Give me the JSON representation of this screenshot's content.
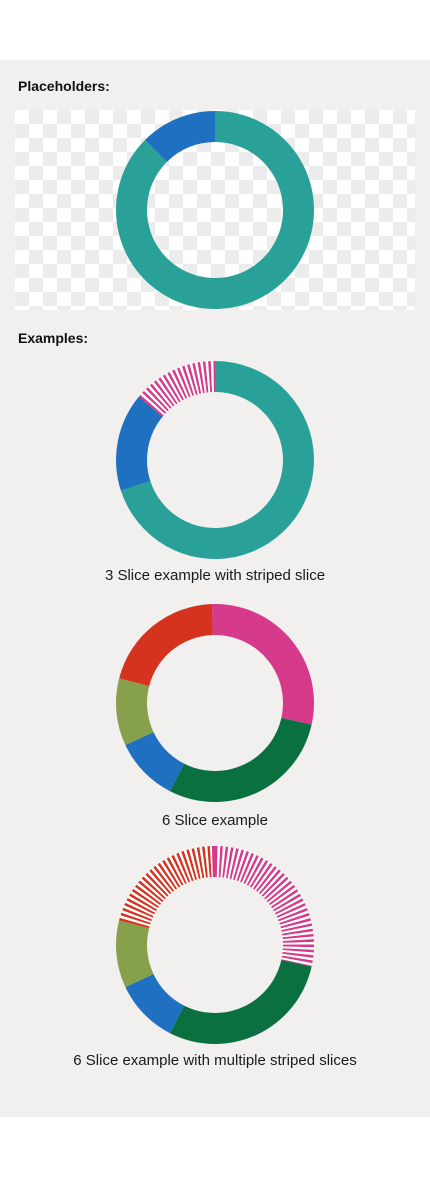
{
  "labels": {
    "placeholders": "Placeholders:",
    "examples": "Examples:"
  },
  "captions": [
    "3 Slice example with striped slice",
    "6 Slice example",
    "6 Slice example with multiple striped slices"
  ],
  "chart_data": [
    {
      "type": "pie",
      "variant": "donut",
      "title": "",
      "background": "checkerboard",
      "slices": [
        {
          "value": 87.5,
          "color": "#2aa198",
          "striped": false
        },
        {
          "value": 12.5,
          "color": "#1f70c1",
          "striped": false
        }
      ]
    },
    {
      "type": "pie",
      "variant": "donut",
      "caption": "3 Slice example with striped slice",
      "slices": [
        {
          "value": 70,
          "color": "#2aa198",
          "striped": false
        },
        {
          "value": 16,
          "color": "#1f70c1",
          "striped": false
        },
        {
          "value": 14,
          "color": "#d63a8a",
          "striped": true
        }
      ]
    },
    {
      "type": "pie",
      "variant": "donut",
      "caption": "6 Slice example",
      "slices": [
        {
          "value": 28.5,
          "color": "#d63a8a",
          "striped": false
        },
        {
          "value": 29,
          "color": "#0b7040",
          "striped": false
        },
        {
          "value": 10.5,
          "color": "#1f70c1",
          "striped": false
        },
        {
          "value": 11,
          "color": "#86a04b",
          "striped": false
        },
        {
          "value": 20.5,
          "color": "#d6331f",
          "striped": false
        },
        {
          "value": 0.5,
          "color": "#d63a8a",
          "striped": false
        }
      ]
    },
    {
      "type": "pie",
      "variant": "donut",
      "caption": "6 Slice example with multiple striped slices",
      "slices": [
        {
          "value": 28.5,
          "color": "#d63a8a",
          "striped": true
        },
        {
          "value": 29,
          "color": "#0b7040",
          "striped": false
        },
        {
          "value": 10.5,
          "color": "#1f70c1",
          "striped": false
        },
        {
          "value": 11,
          "color": "#86a04b",
          "striped": false
        },
        {
          "value": 20.5,
          "color": "#d6331f",
          "striped": true
        },
        {
          "value": 0.5,
          "color": "#d63a8a",
          "striped": false
        }
      ]
    }
  ]
}
